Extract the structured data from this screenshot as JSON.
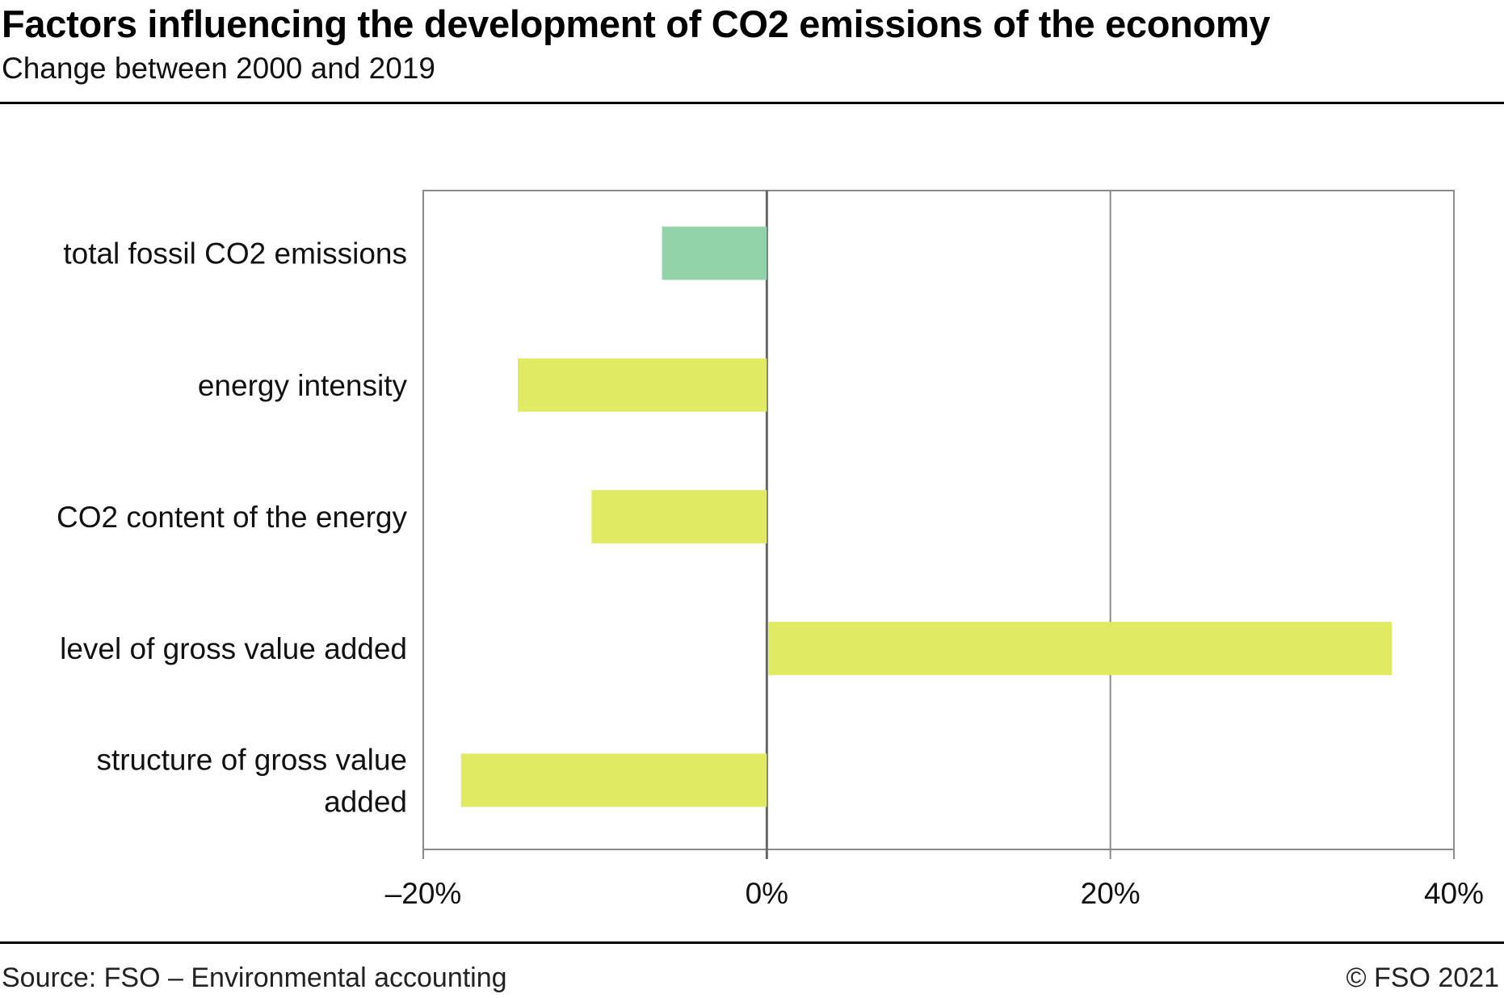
{
  "header": {
    "title": "Factors influencing the development of CO2 emissions of the economy",
    "subtitle": "Change between 2000 and 2019"
  },
  "footer": {
    "source": "Source: FSO – Environmental accounting",
    "copyright": "© FSO 2021"
  },
  "chart_data": {
    "type": "bar",
    "orientation": "horizontal",
    "title": "Factors influencing the development of CO2 emissions of the economy",
    "subtitle": "Change between 2000 and 2019",
    "xlabel": "",
    "ylabel": "",
    "categories": [
      "total fossil CO2 emissions",
      "energy intensity",
      "CO2 content of the energy",
      "level of gross value added",
      "structure of gross value added"
    ],
    "category_lines": [
      [
        "total fossil CO2 emissions"
      ],
      [
        "energy intensity"
      ],
      [
        "CO2 content of the energy"
      ],
      [
        "level of gross value added"
      ],
      [
        "structure of gross value",
        "added"
      ]
    ],
    "values": [
      -6.1,
      -14.5,
      -10.2,
      36.3,
      -17.8
    ],
    "unit": "%",
    "colors": [
      "#93d3a9",
      "#e0ea62",
      "#e0ea62",
      "#e0ea62",
      "#e0ea62"
    ],
    "xlim": [
      -20,
      40
    ],
    "xticks": [
      -20,
      0,
      20,
      40
    ],
    "xtick_labels": [
      "–20%",
      "0%",
      "20%",
      "40%"
    ],
    "grid": true,
    "legend": "none"
  }
}
